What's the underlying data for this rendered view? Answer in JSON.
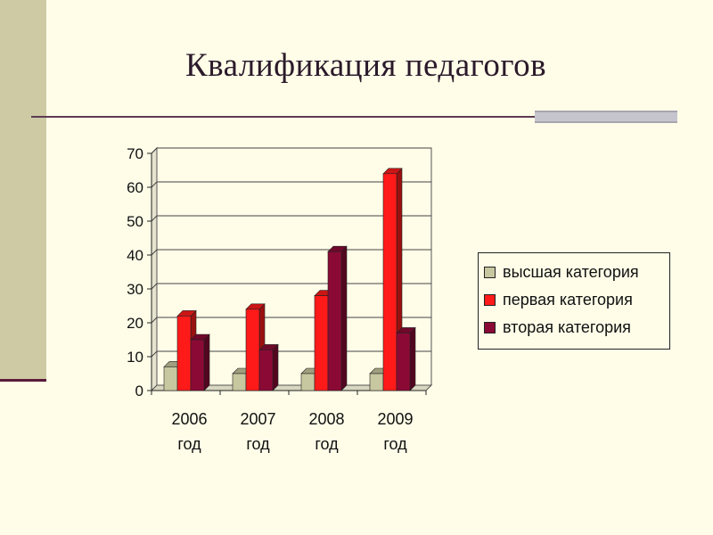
{
  "title": "Квалификация педагогов",
  "chart_data": {
    "type": "bar",
    "categories": [
      [
        "2006",
        "год"
      ],
      [
        "2007",
        "год"
      ],
      [
        "2008",
        "год"
      ],
      [
        "2009",
        "год"
      ]
    ],
    "series": [
      {
        "name": "высшая категория",
        "values": [
          7,
          5,
          5,
          5
        ],
        "color": "#c8c8a0"
      },
      {
        "name": "первая категория",
        "values": [
          22,
          24,
          28,
          64
        ],
        "color": "#ff1a1a"
      },
      {
        "name": "вторая категория",
        "values": [
          15,
          12,
          41,
          17
        ],
        "color": "#8b0a35"
      }
    ],
    "ylim": [
      0,
      70
    ],
    "yticks": [
      "0",
      "10",
      "20",
      "30",
      "40",
      "50",
      "60",
      "70"
    ],
    "grid": true,
    "legend_position": "right"
  }
}
